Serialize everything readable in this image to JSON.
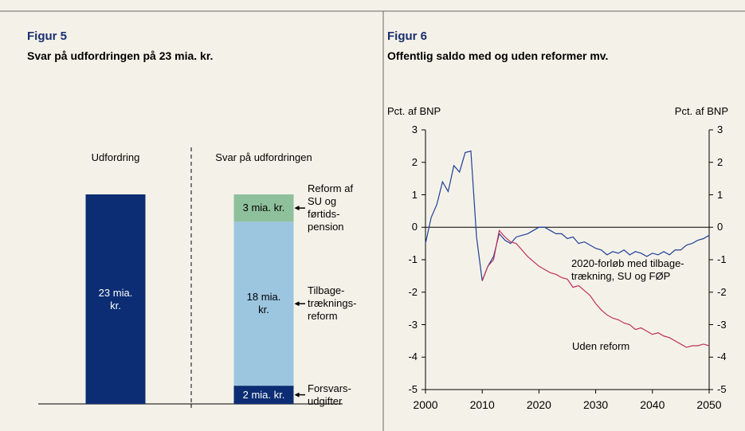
{
  "chart_data": [
    {
      "type": "bar",
      "stacked": true,
      "figure": "Figur 5",
      "title": "Svar på udfordringen på 23 mia. kr.",
      "categories": [
        "Udfordring",
        "Svar på udfordringen"
      ],
      "series": [
        {
          "color": "#0c2d73",
          "values": [
            23,
            null
          ],
          "value_labels": [
            "23 mia.\nkr.",
            null
          ]
        },
        {
          "name": "Forsvars-\nudgifter",
          "color": "#0c2d73",
          "values": [
            null,
            2
          ],
          "value_labels": [
            null,
            "2 mia. kr."
          ]
        },
        {
          "name": "Tilbage-\ntræknings-\nreform",
          "color": "#9cc6e0",
          "values": [
            null,
            18
          ],
          "value_labels": [
            null,
            "18 mia.\nkr."
          ]
        },
        {
          "name": "Reform af\nSU og\nførtids-\npension",
          "color": "#8fc09c",
          "values": [
            null,
            3
          ],
          "value_labels": [
            null,
            "3 mia. kr."
          ]
        }
      ]
    },
    {
      "type": "line",
      "figure": "Figur 6",
      "title": "Offentlig saldo med og uden reformer mv.",
      "ylabel": "Pct. af BNP",
      "y2label": "Pct. af BNP",
      "x": [
        2000,
        2001,
        2002,
        2003,
        2004,
        2005,
        2006,
        2007,
        2008,
        2009,
        2010,
        2011,
        2012,
        2013,
        2014,
        2015,
        2016,
        2017,
        2018,
        2019,
        2020,
        2021,
        2022,
        2023,
        2024,
        2025,
        2026,
        2027,
        2028,
        2029,
        2030,
        2031,
        2032,
        2033,
        2034,
        2035,
        2036,
        2037,
        2038,
        2039,
        2040,
        2041,
        2042,
        2043,
        2044,
        2045,
        2046,
        2047,
        2048,
        2049,
        2050
      ],
      "xlim": [
        2000,
        2050
      ],
      "xticks": [
        2000,
        2010,
        2020,
        2030,
        2040,
        2050
      ],
      "ylim": [
        -5,
        3
      ],
      "yticks": [
        -5,
        -4,
        -3,
        -2,
        -1,
        0,
        1,
        2,
        3
      ],
      "y2lim": [
        -5,
        3
      ],
      "y2ticks": [
        -5,
        -4,
        -3,
        -2,
        -1,
        0,
        1,
        2,
        3
      ],
      "grid": false,
      "series": [
        {
          "name": "2020-forløb med tilbage-\ntrækning, SU og FØP",
          "color": "#1f3f99",
          "values": [
            -0.5,
            0.3,
            0.7,
            1.4,
            1.1,
            1.9,
            1.7,
            2.3,
            2.35,
            -0.3,
            -1.65,
            -1.2,
            -0.9,
            -0.2,
            -0.4,
            -0.5,
            -0.3,
            -0.25,
            -0.2,
            -0.1,
            0.0,
            0.0,
            -0.1,
            -0.2,
            -0.2,
            -0.35,
            -0.3,
            -0.5,
            -0.45,
            -0.55,
            -0.65,
            -0.7,
            -0.85,
            -0.75,
            -0.8,
            -0.7,
            -0.85,
            -0.75,
            -0.8,
            -0.9,
            -0.8,
            -0.85,
            -0.75,
            -0.85,
            -0.7,
            -0.7,
            -0.55,
            -0.5,
            -0.4,
            -0.35,
            -0.25
          ]
        },
        {
          "name": "Uden reform",
          "color": "#c0305a",
          "values": [
            null,
            null,
            null,
            null,
            null,
            null,
            null,
            null,
            null,
            null,
            -1.65,
            -1.2,
            -1.0,
            -0.1,
            -0.3,
            -0.45,
            -0.5,
            -0.7,
            -0.9,
            -1.05,
            -1.2,
            -1.3,
            -1.4,
            -1.45,
            -1.55,
            -1.6,
            -1.85,
            -1.8,
            -1.95,
            -2.1,
            -2.35,
            -2.55,
            -2.7,
            -2.8,
            -2.85,
            -2.95,
            -3.0,
            -3.15,
            -3.1,
            -3.2,
            -3.3,
            -3.25,
            -3.35,
            -3.4,
            -3.5,
            -3.6,
            -3.7,
            -3.65,
            -3.65,
            -3.6,
            -3.65
          ]
        }
      ]
    }
  ]
}
